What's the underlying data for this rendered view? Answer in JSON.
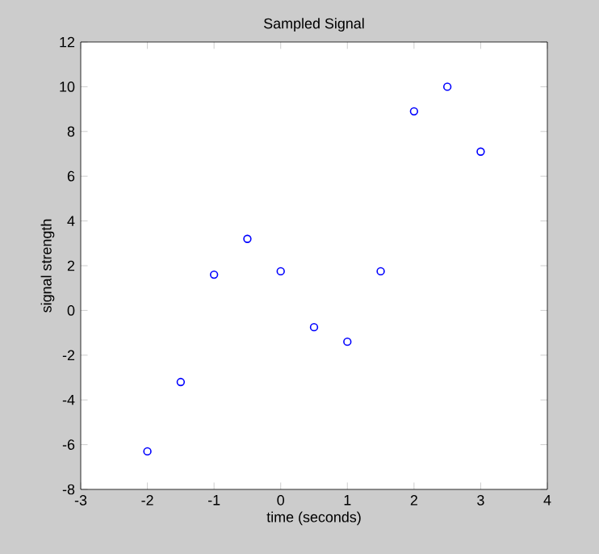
{
  "chart_data": {
    "type": "scatter",
    "title": "Sampled Signal",
    "xlabel": "time (seconds)",
    "ylabel": "signal strength",
    "x": [
      -2,
      -1.5,
      -1,
      -0.5,
      0,
      0.5,
      1,
      1.5,
      2,
      2.5,
      3
    ],
    "values": [
      -6.3,
      -3.2,
      1.6,
      3.2,
      1.75,
      -0.75,
      -1.4,
      1.75,
      8.9,
      10,
      7.1
    ],
    "color": "#0000ff",
    "marker": "circle",
    "xlim": [
      -3,
      4
    ],
    "ylim": [
      -8,
      12
    ],
    "xticks": [
      -3,
      -2,
      -1,
      0,
      1,
      2,
      3,
      4
    ],
    "yticks": [
      -8,
      -6,
      -4,
      -2,
      0,
      2,
      4,
      6,
      8,
      10,
      12
    ]
  }
}
